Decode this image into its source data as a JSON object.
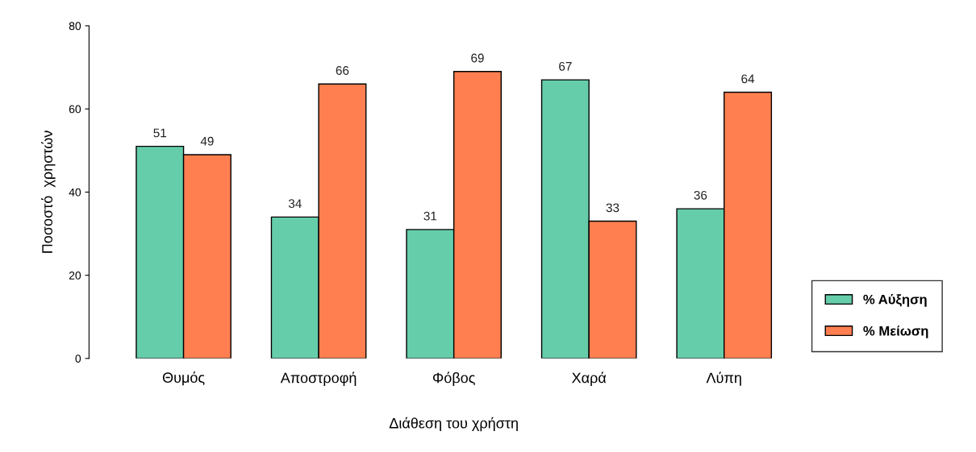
{
  "chart_data": {
    "type": "bar",
    "xlabel": "Διάθεση του χρήστη",
    "ylabel": "Ποσοστό  χρηστών",
    "categories": [
      "Θυμός",
      "Αποστροφή",
      "Φόβος",
      "Χαρά",
      "Λύπη"
    ],
    "series": [
      {
        "name": "% Αύξηση",
        "color": "#66cdaa",
        "values": [
          51,
          34,
          31,
          67,
          36
        ]
      },
      {
        "name": "% Μείωση",
        "color": "#ff7f50",
        "values": [
          49,
          66,
          69,
          33,
          64
        ]
      }
    ],
    "ylim": [
      0,
      80
    ],
    "yticks": [
      0,
      20,
      40,
      60,
      80
    ],
    "data_labels": true,
    "grid": false,
    "legend": "bottom right"
  }
}
